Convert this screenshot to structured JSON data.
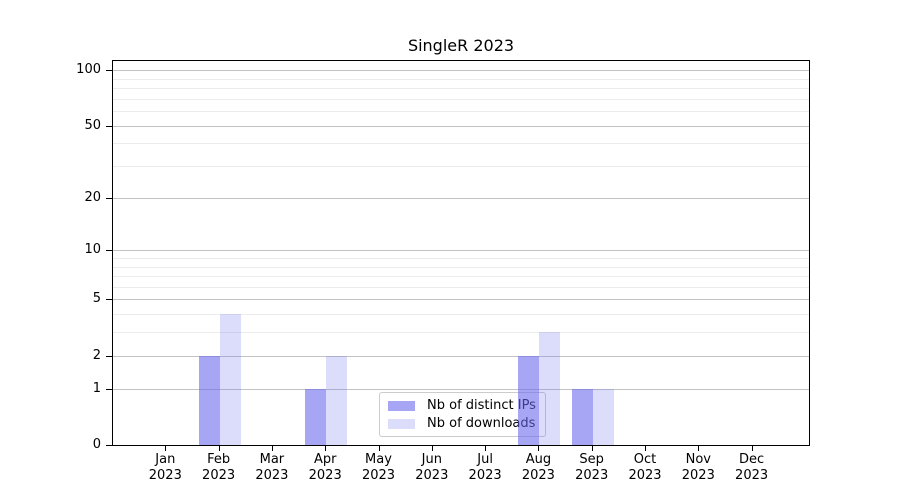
{
  "chart_data": {
    "type": "bar",
    "title": "SingleR 2023",
    "categories": [
      "Jan 2023",
      "Feb 2023",
      "Mar 2023",
      "Apr 2023",
      "May 2023",
      "Jun 2023",
      "Jul 2023",
      "Aug 2023",
      "Sep 2023",
      "Oct 2023",
      "Nov 2023",
      "Dec 2023"
    ],
    "series": [
      {
        "name": "Nb of distinct IPs",
        "color": "#6666ee",
        "alpha": 0.58,
        "values": [
          0,
          2,
          0,
          1,
          0,
          0,
          0,
          2,
          1,
          0,
          0,
          0
        ]
      },
      {
        "name": "Nb of downloads",
        "color": "#6666ee",
        "alpha": 0.23,
        "values": [
          0,
          4,
          0,
          2,
          0,
          0,
          0,
          3,
          1,
          0,
          0,
          0
        ]
      }
    ],
    "y_axis": {
      "scale": "log1p",
      "tick_values": [
        0,
        1,
        2,
        5,
        10,
        20,
        50,
        100
      ],
      "minor_gridline_values": [
        3,
        4,
        6,
        7,
        8,
        9,
        30,
        40,
        60,
        70,
        80,
        90
      ],
      "max": 112
    },
    "legend_position": "lower center",
    "grid": true
  },
  "colors": {
    "bar_base": "#6666ee",
    "bar_dark_blend": "#a6a6f5",
    "bar_light_blend": "#dcdcfb",
    "major_grid": "#c3c3c3",
    "minor_grid": "#ececec",
    "axis": "#000000",
    "background": "#ffffff"
  }
}
